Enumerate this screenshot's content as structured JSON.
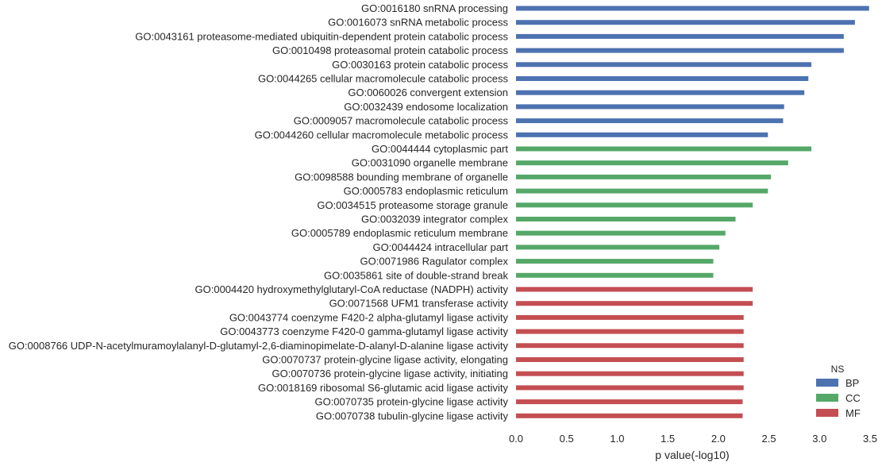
{
  "chart_data": {
    "type": "bar",
    "orientation": "horizontal",
    "title": "",
    "xlabel": "p value(-log10)",
    "ylabel": "",
    "xlim": [
      0,
      3.5
    ],
    "x_ticks": [
      "0.0",
      "0.5",
      "1.0",
      "1.5",
      "2.0",
      "2.5",
      "3.0",
      "3.5"
    ],
    "grid": false,
    "legend": {
      "title": "NS",
      "placement": "bottom-right",
      "entries": [
        {
          "name": "BP",
          "color": "#4c72b0"
        },
        {
          "name": "CC",
          "color": "#55a868"
        },
        {
          "name": "MF",
          "color": "#c44e52"
        }
      ]
    },
    "bars": [
      {
        "label": "GO:0016180 snRNA processing",
        "ns": "BP",
        "value": 3.49
      },
      {
        "label": "GO:0016073 snRNA metabolic process",
        "ns": "BP",
        "value": 3.35
      },
      {
        "label": "GO:0043161 proteasome-mediated ubiquitin-dependent protein catabolic process",
        "ns": "BP",
        "value": 3.24
      },
      {
        "label": "GO:0010498 proteasomal protein catabolic process",
        "ns": "BP",
        "value": 3.24
      },
      {
        "label": "GO:0030163 protein catabolic process",
        "ns": "BP",
        "value": 2.92
      },
      {
        "label": "GO:0044265 cellular macromolecule catabolic process",
        "ns": "BP",
        "value": 2.89
      },
      {
        "label": "GO:0060026 convergent extension",
        "ns": "BP",
        "value": 2.85
      },
      {
        "label": "GO:0032439 endosome localization",
        "ns": "BP",
        "value": 2.65
      },
      {
        "label": "GO:0009057 macromolecule catabolic process",
        "ns": "BP",
        "value": 2.64
      },
      {
        "label": "GO:0044260 cellular macromolecule metabolic process",
        "ns": "BP",
        "value": 2.49
      },
      {
        "label": "GO:0044444 cytoplasmic part",
        "ns": "CC",
        "value": 2.92
      },
      {
        "label": "GO:0031090 organelle membrane",
        "ns": "CC",
        "value": 2.69
      },
      {
        "label": "GO:0098588 bounding membrane of organelle",
        "ns": "CC",
        "value": 2.52
      },
      {
        "label": "GO:0005783 endoplasmic reticulum",
        "ns": "CC",
        "value": 2.49
      },
      {
        "label": "GO:0034515 proteasome storage granule",
        "ns": "CC",
        "value": 2.34
      },
      {
        "label": "GO:0032039 integrator complex",
        "ns": "CC",
        "value": 2.17
      },
      {
        "label": "GO:0005789 endoplasmic reticulum membrane",
        "ns": "CC",
        "value": 2.07
      },
      {
        "label": "GO:0044424 intracellular part",
        "ns": "CC",
        "value": 2.01
      },
      {
        "label": "GO:0071986 Ragulator complex",
        "ns": "CC",
        "value": 1.95
      },
      {
        "label": "GO:0035861 site of double-strand break",
        "ns": "CC",
        "value": 1.95
      },
      {
        "label": "GO:0004420 hydroxymethylglutaryl-CoA reductase (NADPH) activity",
        "ns": "MF",
        "value": 2.34
      },
      {
        "label": "GO:0071568 UFM1 transferase activity",
        "ns": "MF",
        "value": 2.34
      },
      {
        "label": "GO:0043774 coenzyme F420-2 alpha-glutamyl ligase activity",
        "ns": "MF",
        "value": 2.25
      },
      {
        "label": "GO:0043773 coenzyme F420-0 gamma-glutamyl ligase activity",
        "ns": "MF",
        "value": 2.25
      },
      {
        "label": "GO:0008766 UDP-N-acetylmuramoylalanyl-D-glutamyl-2,6-diaminopimelate-D-alanyl-D-alanine ligase activity",
        "ns": "MF",
        "value": 2.25
      },
      {
        "label": "GO:0070737 protein-glycine ligase activity, elongating",
        "ns": "MF",
        "value": 2.25
      },
      {
        "label": "GO:0070736 protein-glycine ligase activity, initiating",
        "ns": "MF",
        "value": 2.25
      },
      {
        "label": "GO:0018169 ribosomal S6-glutamic acid ligase activity",
        "ns": "MF",
        "value": 2.25
      },
      {
        "label": "GO:0070735 protein-glycine ligase activity",
        "ns": "MF",
        "value": 2.24
      },
      {
        "label": "GO:0070738 tubulin-glycine ligase activity",
        "ns": "MF",
        "value": 2.24
      }
    ]
  }
}
